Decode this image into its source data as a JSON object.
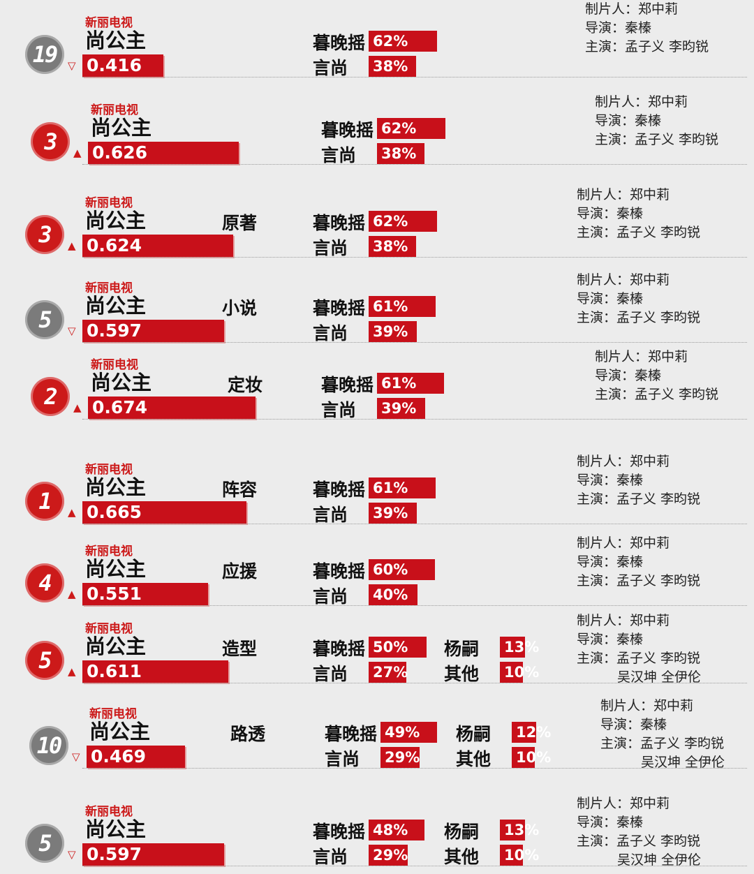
{
  "chart_data": {
    "type": "table",
    "rows": [
      {
        "rank": "19",
        "trend": "down",
        "channel": "新丽电视",
        "title": "尚公主",
        "score": 0.416,
        "category": "",
        "shares": [
          {
            "name": "暮晚摇",
            "pct": 62
          },
          {
            "name": "言尚",
            "pct": 38
          }
        ],
        "credits": [
          "制片人：郑中莉",
          "导演：秦榛",
          "主演：孟子义  李昀锐"
        ]
      },
      {
        "rank": "3",
        "trend": "up",
        "channel": "新丽电视",
        "title": "尚公主",
        "score": 0.626,
        "category": "",
        "shares": [
          {
            "name": "暮晚摇",
            "pct": 62
          },
          {
            "name": "言尚",
            "pct": 38
          }
        ],
        "credits": [
          "制片人：郑中莉",
          "导演：秦榛",
          "主演：孟子义  李昀锐"
        ]
      },
      {
        "rank": "3",
        "trend": "up",
        "channel": "新丽电视",
        "title": "尚公主",
        "score": 0.624,
        "category": "原著",
        "shares": [
          {
            "name": "暮晚摇",
            "pct": 62
          },
          {
            "name": "言尚",
            "pct": 38
          }
        ],
        "credits": [
          "制片人：郑中莉",
          "导演：秦榛",
          "主演：孟子义  李昀锐"
        ]
      },
      {
        "rank": "5",
        "trend": "down",
        "channel": "新丽电视",
        "title": "尚公主",
        "score": 0.597,
        "category": "小说",
        "shares": [
          {
            "name": "暮晚摇",
            "pct": 61
          },
          {
            "name": "言尚",
            "pct": 39
          }
        ],
        "credits": [
          "制片人：郑中莉",
          "导演：秦榛",
          "主演：孟子义  李昀锐"
        ]
      },
      {
        "rank": "2",
        "trend": "up",
        "channel": "新丽电视",
        "title": "尚公主",
        "score": 0.674,
        "category": "定妆",
        "shares": [
          {
            "name": "暮晚摇",
            "pct": 61
          },
          {
            "name": "言尚",
            "pct": 39
          }
        ],
        "credits": [
          "制片人：郑中莉",
          "导演：秦榛",
          "主演：孟子义  李昀锐"
        ]
      },
      {
        "rank": "1",
        "trend": "up",
        "channel": "新丽电视",
        "title": "尚公主",
        "score": 0.665,
        "category": "阵容",
        "shares": [
          {
            "name": "暮晚摇",
            "pct": 61
          },
          {
            "name": "言尚",
            "pct": 39
          }
        ],
        "credits": [
          "制片人：郑中莉",
          "导演：秦榛",
          "主演：孟子义  李昀锐"
        ]
      },
      {
        "rank": "4",
        "trend": "up",
        "channel": "新丽电视",
        "title": "尚公主",
        "score": 0.551,
        "category": "应援",
        "shares": [
          {
            "name": "暮晚摇",
            "pct": 60
          },
          {
            "name": "言尚",
            "pct": 40
          }
        ],
        "credits": [
          "制片人：郑中莉",
          "导演：秦榛",
          "主演：孟子义  李昀锐"
        ]
      },
      {
        "rank": "5",
        "trend": "up",
        "channel": "新丽电视",
        "title": "尚公主",
        "score": 0.611,
        "category": "造型",
        "shares": [
          {
            "name": "暮晚摇",
            "pct": 50
          },
          {
            "name": "言尚",
            "pct": 27
          },
          {
            "name": "杨嗣",
            "pct": 13
          },
          {
            "name": "其他",
            "pct": 10
          }
        ],
        "credits": [
          "制片人：郑中莉",
          "导演：秦榛",
          "主演：孟子义  李昀锐",
          "吴汉坤  全伊伦"
        ]
      },
      {
        "rank": "10",
        "trend": "down",
        "channel": "新丽电视",
        "title": "尚公主",
        "score": 0.469,
        "category": "路透",
        "shares": [
          {
            "name": "暮晚摇",
            "pct": 49
          },
          {
            "name": "言尚",
            "pct": 29
          },
          {
            "name": "杨嗣",
            "pct": 12
          },
          {
            "name": "其他",
            "pct": 10
          }
        ],
        "credits": [
          "制片人：郑中莉",
          "导演：秦榛",
          "主演：孟子义  李昀锐",
          "吴汉坤  全伊伦"
        ]
      },
      {
        "rank": "5",
        "trend": "down",
        "channel": "新丽电视",
        "title": "尚公主",
        "score": 0.597,
        "category": "",
        "shares": [
          {
            "name": "暮晚摇",
            "pct": 48
          },
          {
            "name": "言尚",
            "pct": 29
          },
          {
            "name": "杨嗣",
            "pct": 13
          },
          {
            "name": "其他",
            "pct": 10
          }
        ],
        "credits": [
          "制片人：郑中莉",
          "导演：秦榛",
          "主演：孟子义  李昀锐",
          "吴汉坤  全伊伦"
        ]
      }
    ]
  },
  "colors": {
    "accent": "#c8101a",
    "rank_down": "#7b7b7b",
    "channel": "#cc1a1a"
  }
}
